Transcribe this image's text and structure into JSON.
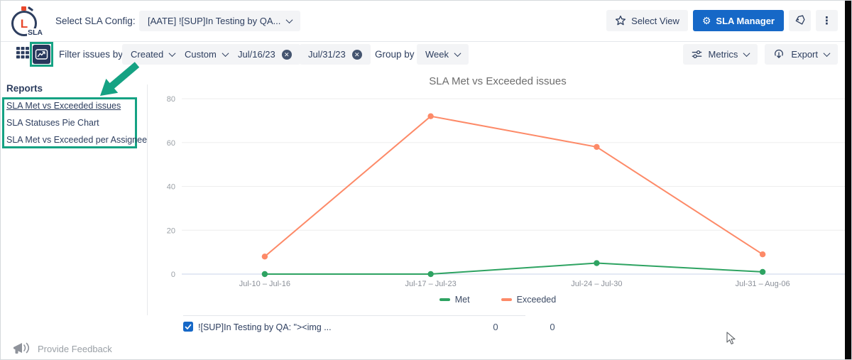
{
  "header": {
    "logo_letter": "L",
    "logo_text": "SLA",
    "select_config_label": "Select SLA Config:",
    "config_value": "[AATE] ![SUP]In Testing by QA...",
    "select_view_label": "Select View",
    "sla_manager_label": "SLA Manager"
  },
  "toolbar": {
    "filter_label": "Filter issues by:",
    "created_value": "Created",
    "custom_value": "Custom",
    "date_from": "Jul/16/23",
    "date_to": "Jul/31/23",
    "group_by_label": "Group by",
    "group_value": "Week",
    "metrics_label": "Metrics",
    "export_label": "Export"
  },
  "sidebar": {
    "title": "Reports",
    "items": [
      {
        "label": "SLA Met vs Exceeded issues"
      },
      {
        "label": "SLA Statuses Pie Chart"
      },
      {
        "label": "SLA Met vs Exceeded per Assignee"
      }
    ]
  },
  "chart_data": {
    "type": "line",
    "title": "SLA Met vs Exceeded issues",
    "categories": [
      "Jul-10 – Jul-16",
      "Jul-17 – Jul-23",
      "Jul-24 – Jul-30",
      "Jul-31 – Aug-06"
    ],
    "series": [
      {
        "name": "Met",
        "color": "#2ea362",
        "values": [
          0,
          0,
          5,
          1
        ]
      },
      {
        "name": "Exceeded",
        "color": "#fd8a68",
        "values": [
          8,
          72,
          58,
          9
        ]
      }
    ],
    "yticks": [
      0,
      20,
      40,
      60,
      80
    ],
    "ylim": [
      0,
      80
    ],
    "grid": true,
    "legend_position": "bottom"
  },
  "table": {
    "row_label": "![SUP]In Testing by QA: \"><img ...",
    "met_value": "0",
    "exceeded_value": "0"
  },
  "footer": {
    "feedback_label": "Provide Feedback"
  },
  "icons": {
    "gear": "⚙",
    "kebab": "⋮",
    "close": "✕"
  },
  "colors": {
    "annotation_teal": "#15a283",
    "navy": "#2d3e5f",
    "primary_blue": "#1668c7",
    "met_green": "#2ea362",
    "exceeded_orange": "#fd8a68"
  }
}
